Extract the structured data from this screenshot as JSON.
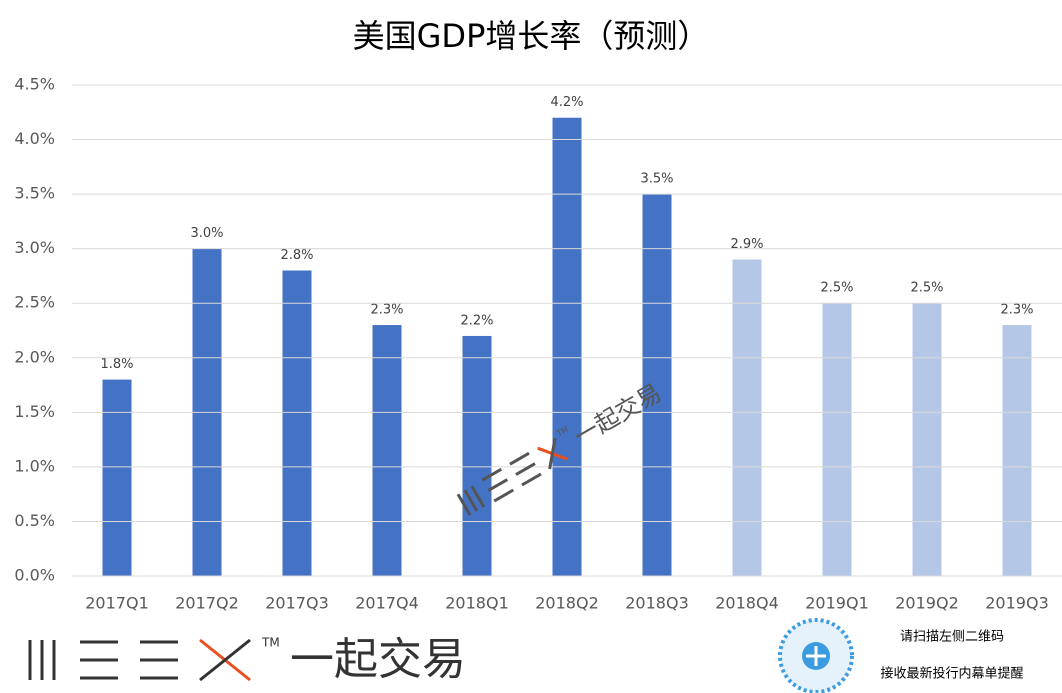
{
  "chart_data": {
    "type": "bar",
    "title": "美国GDP增长率（预测）",
    "categories": [
      "2017Q1",
      "2017Q2",
      "2017Q3",
      "2017Q4",
      "2018Q1",
      "2018Q2",
      "2018Q3",
      "2018Q4",
      "2019Q1",
      "2019Q2",
      "2019Q3"
    ],
    "values": [
      1.8,
      3.0,
      2.8,
      2.3,
      2.2,
      4.2,
      3.5,
      2.9,
      2.5,
      2.5,
      2.3
    ],
    "value_labels": [
      "1.8%",
      "3.0%",
      "2.8%",
      "2.3%",
      "2.2%",
      "4.2%",
      "3.5%",
      "2.9%",
      "2.5%",
      "2.5%",
      "2.3%"
    ],
    "colors": [
      "#4472c4",
      "#4472c4",
      "#4472c4",
      "#4472c4",
      "#4472c4",
      "#4472c4",
      "#4472c4",
      "#b4c7e7",
      "#b4c7e7",
      "#b4c7e7",
      "#b4c7e7"
    ],
    "ylim": [
      0,
      4.5
    ],
    "yticks": [
      {
        "value": 0,
        "label": "0.0%"
      },
      {
        "value": 0.5,
        "label": "0.5%"
      },
      {
        "value": 1,
        "label": "1.0%"
      },
      {
        "value": 1.5,
        "label": "1.5%"
      },
      {
        "value": 2,
        "label": "2.0%"
      },
      {
        "value": 2.5,
        "label": "2.5%"
      },
      {
        "value": 3,
        "label": "3.0%"
      },
      {
        "value": 3.5,
        "label": "3.5%"
      },
      {
        "value": 4,
        "label": "4.0%"
      },
      {
        "value": 4.5,
        "label": "4.5%"
      }
    ],
    "grid": true
  },
  "watermark": {
    "brand": "一起交易",
    "trademark": "TM"
  },
  "footer": {
    "brand": "一起交易",
    "trademark": "TM",
    "qr_caption": [
      "请扫描左侧二维码",
      "接收最新投行内幕单提醒"
    ]
  }
}
